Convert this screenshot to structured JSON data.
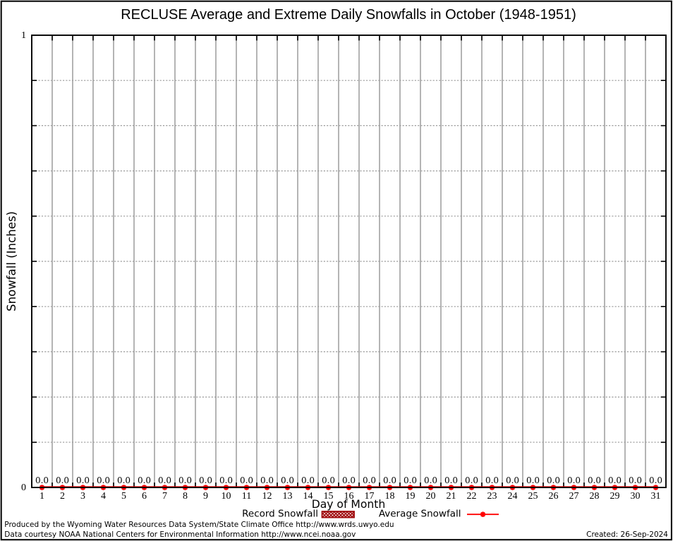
{
  "title": "RECLUSE Average and Extreme Daily Snowfalls in October (1948-1951)",
  "axes": {
    "xlabel": "Day of Month",
    "ylabel": "Snowfall (Inches)",
    "ytick_labels": [
      "0",
      "1"
    ],
    "ylim": [
      0,
      1
    ]
  },
  "legend": {
    "items": [
      {
        "label": "Record Snowfall",
        "swatch": "hatched-box",
        "color": "#9e0508"
      },
      {
        "label": "Average Snowfall",
        "swatch": "line-with-point",
        "color": "#ff0000"
      }
    ]
  },
  "footer": {
    "line1": "Produced by the Wyoming Water Resources Data System/State Climate Office http://www.wrds.uwyo.edu",
    "line2": "Data courtesy NOAA National Centers for Environmental Information http://www.ncei.noaa.gov",
    "created": "Created: 26-Sep-2024"
  },
  "chart_data": {
    "type": "bar",
    "title": "RECLUSE Average and Extreme Daily Snowfalls in October (1948-1951)",
    "xlabel": "Day of Month",
    "ylabel": "Snowfall (Inches)",
    "ylim": [
      0,
      1
    ],
    "yticks": [
      0,
      1
    ],
    "ytick_labels": [
      "0",
      "1"
    ],
    "categories": [
      1,
      2,
      3,
      4,
      5,
      6,
      7,
      8,
      9,
      10,
      11,
      12,
      13,
      14,
      15,
      16,
      17,
      18,
      19,
      20,
      21,
      22,
      23,
      24,
      25,
      26,
      27,
      28,
      29,
      30,
      31
    ],
    "series": [
      {
        "name": "Record Snowfall",
        "type": "bar",
        "color": "#9e0508",
        "values": [
          0,
          0,
          0,
          0,
          0,
          0,
          0,
          0,
          0,
          0,
          0,
          0,
          0,
          0,
          0,
          0,
          0,
          0,
          0,
          0,
          0,
          0,
          0,
          0,
          0,
          0,
          0,
          0,
          0,
          0,
          0
        ]
      },
      {
        "name": "Average Snowfall",
        "type": "line",
        "color": "#ff0000",
        "values": [
          0,
          0,
          0,
          0,
          0,
          0,
          0,
          0,
          0,
          0,
          0,
          0,
          0,
          0,
          0,
          0,
          0,
          0,
          0,
          0,
          0,
          0,
          0,
          0,
          0,
          0,
          0,
          0,
          0,
          0,
          0
        ]
      }
    ],
    "value_label_format": "0.0",
    "grid": {
      "x_boundaries": true,
      "y_minor_dotted": 9,
      "legend_position": "below-x-axis"
    }
  },
  "colors": {
    "grid_vertical": "#b4b4b4",
    "grid_dotted": "#9a9a9a",
    "axis": "#000000",
    "average_line": "#ff0000",
    "record_fill": "#9e0508"
  }
}
